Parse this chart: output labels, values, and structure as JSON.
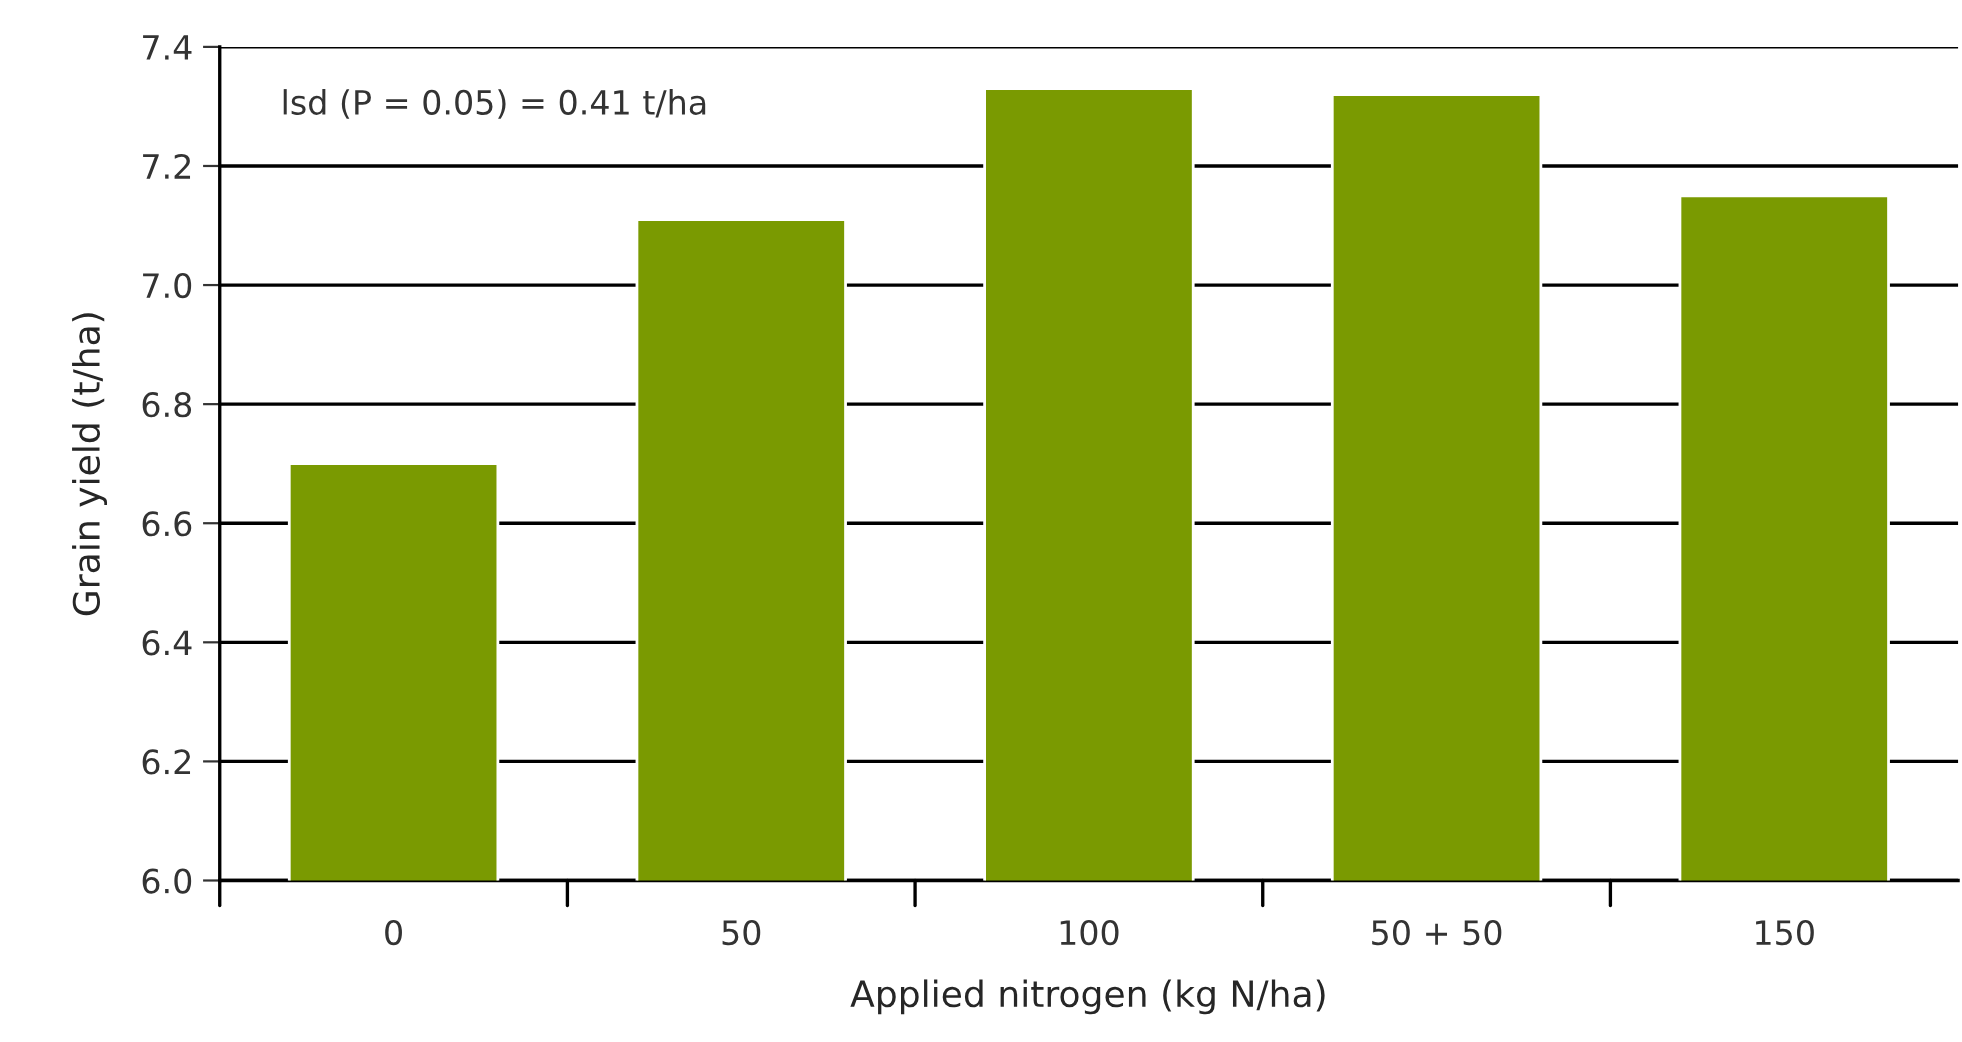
{
  "chart_data": {
    "type": "bar",
    "xlabel": "Applied nitrogen (kg N/ha)",
    "ylabel": "Grain yield (t/ha)",
    "categories": [
      "0",
      "50",
      "100",
      "50 + 50",
      "150"
    ],
    "values": [
      6.7,
      7.11,
      7.33,
      7.32,
      7.15
    ],
    "color": "#7a9a01",
    "ylim": [
      6.0,
      7.4
    ],
    "yticks": [
      {
        "value": 6.0,
        "label": "6.0"
      },
      {
        "value": 6.2,
        "label": "6.2"
      },
      {
        "value": 6.4,
        "label": "6.4"
      },
      {
        "value": 6.6,
        "label": "6.6"
      },
      {
        "value": 6.8,
        "label": "6.8"
      },
      {
        "value": 7.0,
        "label": "7.0"
      },
      {
        "value": 7.2,
        "label": "7.2"
      },
      {
        "value": 7.4,
        "label": "7.4"
      }
    ],
    "grid": "y",
    "annotations": [
      "lsd (P = 0.05) = 0.41 t/ha"
    ]
  }
}
